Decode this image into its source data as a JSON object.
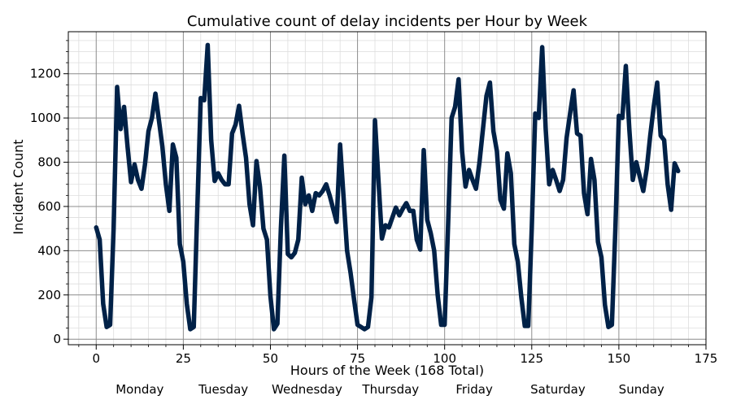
{
  "chart_data": {
    "type": "line",
    "title": "Cumulative count of delay incidents per Hour by Week",
    "xlabel": "Hours of the Week (168 Total)",
    "ylabel": "Incident Count",
    "xlim": [
      -8,
      175
    ],
    "ylim": [
      -25,
      1390
    ],
    "xticks": [
      0,
      25,
      50,
      75,
      100,
      125,
      150,
      175
    ],
    "yticks": [
      0,
      200,
      400,
      600,
      800,
      1000,
      1200
    ],
    "grid": true,
    "day_labels": [
      "Monday",
      "Tuesday",
      "Wednesday",
      "Thursday",
      "Friday",
      "Saturday",
      "Sunday"
    ],
    "line_color": "#002147",
    "series": [
      {
        "x": [
          0,
          1,
          2,
          3,
          4,
          5,
          6,
          7,
          8,
          9,
          10,
          11,
          12,
          13,
          14,
          15,
          16,
          17,
          18,
          19,
          20,
          21,
          22,
          23,
          24,
          25,
          26,
          27,
          28,
          29,
          30,
          31,
          32,
          33,
          34,
          35,
          36,
          37,
          38,
          39,
          40,
          41,
          42,
          43,
          44,
          45,
          46,
          47,
          48,
          49,
          50,
          51,
          52,
          53,
          54,
          55,
          56,
          57,
          58,
          59,
          60,
          61,
          62,
          63,
          64,
          65,
          66,
          67,
          68,
          69,
          70,
          71,
          72,
          73,
          74,
          75,
          76,
          77,
          78,
          79,
          80,
          81,
          82,
          83,
          84,
          85,
          86,
          87,
          88,
          89,
          90,
          91,
          92,
          93,
          94,
          95,
          96,
          97,
          98,
          99,
          100,
          101,
          102,
          103,
          104,
          105,
          106,
          107,
          108,
          109,
          110,
          111,
          112,
          113,
          114,
          115,
          116,
          117,
          118,
          119,
          120,
          121,
          122,
          123,
          124,
          125,
          126,
          127,
          128,
          129,
          130,
          131,
          132,
          133,
          134,
          135,
          136,
          137,
          138,
          139,
          140,
          141,
          142,
          143,
          144,
          145,
          146,
          147,
          148,
          149,
          150,
          151,
          152,
          153,
          154,
          155,
          156,
          157,
          158,
          159,
          160,
          161,
          162,
          163,
          164,
          165,
          166,
          167
        ],
        "values": [
          505,
          450,
          160,
          55,
          65,
          500,
          1140,
          950,
          1050,
          870,
          710,
          790,
          720,
          680,
          790,
          940,
          1000,
          1110,
          990,
          870,
          700,
          580,
          880,
          820,
          430,
          350,
          160,
          45,
          55,
          580,
          1090,
          1080,
          1330,
          900,
          715,
          750,
          720,
          700,
          700,
          930,
          970,
          1055,
          930,
          820,
          610,
          515,
          805,
          690,
          500,
          450,
          195,
          45,
          70,
          500,
          830,
          385,
          370,
          390,
          450,
          730,
          610,
          650,
          580,
          660,
          650,
          670,
          700,
          650,
          590,
          530,
          880,
          640,
          400,
          300,
          180,
          65,
          55,
          45,
          55,
          190,
          990,
          720,
          455,
          515,
          505,
          550,
          595,
          560,
          590,
          615,
          580,
          580,
          450,
          405,
          855,
          540,
          480,
          400,
          200,
          65,
          65,
          520,
          1000,
          1050,
          1175,
          850,
          690,
          765,
          720,
          680,
          800,
          950,
          1100,
          1160,
          940,
          850,
          630,
          590,
          840,
          750,
          430,
          350,
          190,
          60,
          60,
          500,
          1020,
          1000,
          1320,
          950,
          700,
          765,
          720,
          670,
          720,
          910,
          1020,
          1125,
          930,
          920,
          660,
          565,
          815,
          720,
          440,
          370,
          155,
          55,
          65,
          500,
          1010,
          1000,
          1235,
          950,
          720,
          800,
          735,
          670,
          770,
          920,
          1050,
          1160,
          920,
          900,
          700,
          585,
          795,
          760
        ]
      }
    ]
  }
}
